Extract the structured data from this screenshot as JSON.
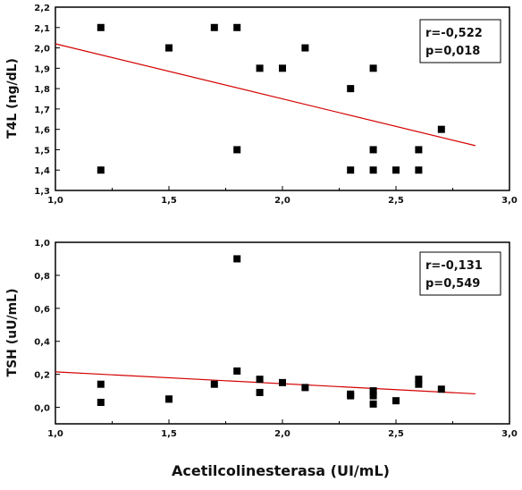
{
  "xlabel": "Acetilcolinesterasa (UI/mL)",
  "chart_data": [
    {
      "type": "scatter",
      "ylabel": "T4L (ng/dL)",
      "xlim": [
        1.0,
        3.0
      ],
      "ylim": [
        1.3,
        2.2
      ],
      "xticks": [
        "1,0",
        "1,5",
        "2,0",
        "2,5",
        "3,0"
      ],
      "yticks": [
        "1,3",
        "1,4",
        "1,5",
        "1,6",
        "1,7",
        "1,8",
        "1,9",
        "2,0",
        "2,1",
        "2,2"
      ],
      "points": [
        {
          "x": 1.2,
          "y": 2.1
        },
        {
          "x": 1.2,
          "y": 1.4
        },
        {
          "x": 1.5,
          "y": 2.0
        },
        {
          "x": 1.5,
          "y": 2.0
        },
        {
          "x": 1.7,
          "y": 2.1
        },
        {
          "x": 1.8,
          "y": 2.1
        },
        {
          "x": 1.8,
          "y": 1.5
        },
        {
          "x": 1.9,
          "y": 1.9
        },
        {
          "x": 2.0,
          "y": 1.9
        },
        {
          "x": 2.1,
          "y": 2.0
        },
        {
          "x": 2.3,
          "y": 1.8
        },
        {
          "x": 2.3,
          "y": 1.4
        },
        {
          "x": 2.4,
          "y": 1.9
        },
        {
          "x": 2.4,
          "y": 1.5
        },
        {
          "x": 2.4,
          "y": 1.4
        },
        {
          "x": 2.5,
          "y": 1.4
        },
        {
          "x": 2.6,
          "y": 1.5
        },
        {
          "x": 2.6,
          "y": 1.4
        },
        {
          "x": 2.7,
          "y": 1.6
        }
      ],
      "trendline": {
        "x": [
          1.0,
          2.85
        ],
        "y": [
          2.02,
          1.52
        ],
        "color": "#d40000"
      },
      "stats": {
        "r": "r=-0,522",
        "p": "p=0,018"
      }
    },
    {
      "type": "scatter",
      "ylabel": "TSH (uU/mL)",
      "xlim": [
        1.0,
        3.0
      ],
      "ylim": [
        -0.1,
        1.0
      ],
      "xticks": [
        "1,0",
        "1,5",
        "2,0",
        "2,5",
        "3,0"
      ],
      "yticks": [
        "0,0",
        "0,2",
        "0,4",
        "0,6",
        "0,8",
        "1,0"
      ],
      "ytick_values": [
        0.0,
        0.2,
        0.4,
        0.6,
        0.8,
        1.0
      ],
      "points": [
        {
          "x": 1.2,
          "y": 0.14
        },
        {
          "x": 1.2,
          "y": 0.03
        },
        {
          "x": 1.5,
          "y": 0.05
        },
        {
          "x": 1.5,
          "y": 0.05
        },
        {
          "x": 1.7,
          "y": 0.14
        },
        {
          "x": 1.8,
          "y": 0.9
        },
        {
          "x": 1.8,
          "y": 0.22
        },
        {
          "x": 1.9,
          "y": 0.17
        },
        {
          "x": 1.9,
          "y": 0.09
        },
        {
          "x": 2.0,
          "y": 0.15
        },
        {
          "x": 2.1,
          "y": 0.12
        },
        {
          "x": 2.3,
          "y": 0.08
        },
        {
          "x": 2.3,
          "y": 0.07
        },
        {
          "x": 2.4,
          "y": 0.1
        },
        {
          "x": 2.4,
          "y": 0.07
        },
        {
          "x": 2.4,
          "y": 0.02
        },
        {
          "x": 2.5,
          "y": 0.04
        },
        {
          "x": 2.6,
          "y": 0.17
        },
        {
          "x": 2.6,
          "y": 0.14
        },
        {
          "x": 2.7,
          "y": 0.11
        }
      ],
      "trendline": {
        "x": [
          1.0,
          2.85
        ],
        "y": [
          0.215,
          0.082
        ],
        "color": "#d40000"
      },
      "stats": {
        "r": "r=-0,131",
        "p": "p=0,549"
      }
    }
  ]
}
